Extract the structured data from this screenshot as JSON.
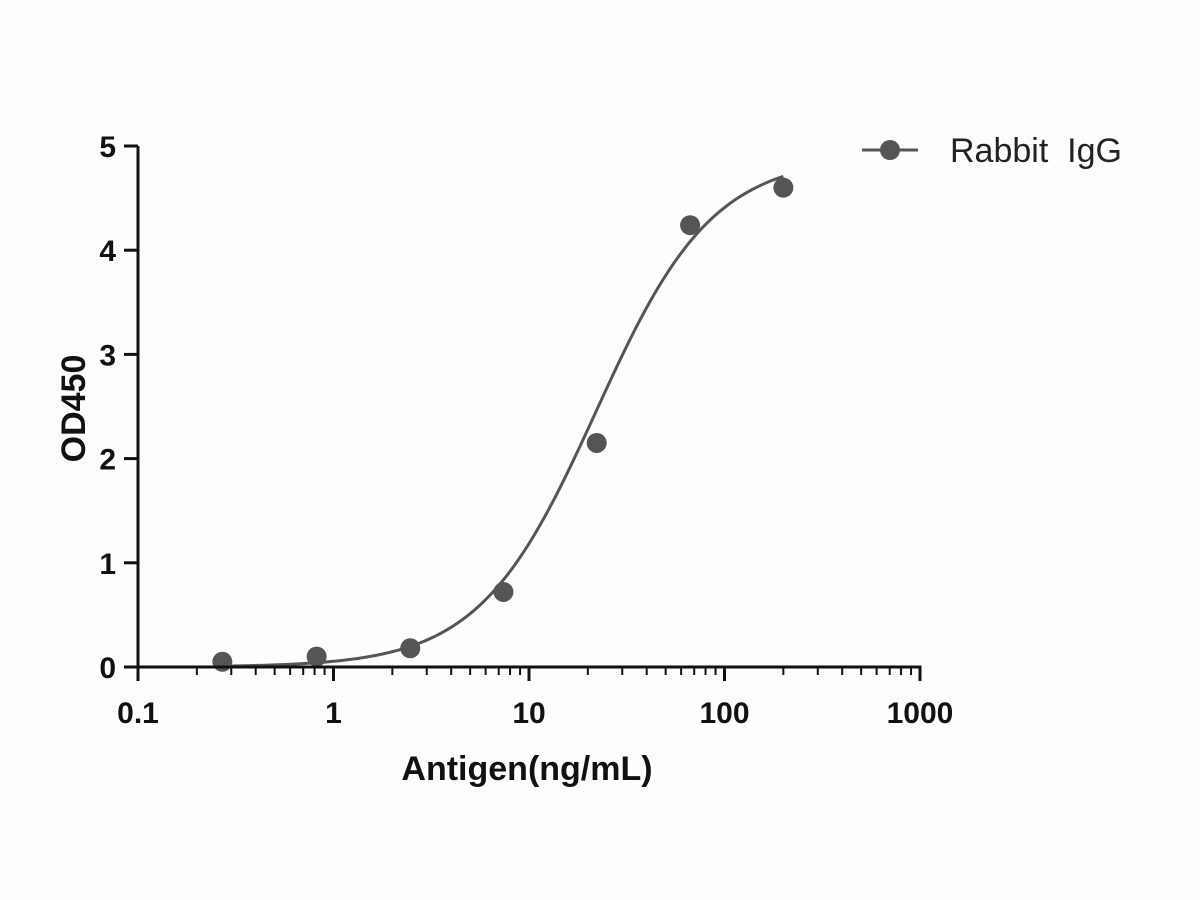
{
  "chart_data": {
    "type": "scatter",
    "title": "",
    "xlabel": "Antigen(ng/mL)",
    "ylabel": "OD450",
    "xscale": "log",
    "xlim": [
      0.1,
      1000
    ],
    "ylim": [
      0,
      5
    ],
    "x_ticks": [
      "0.1",
      "1",
      "10",
      "100",
      "1000"
    ],
    "y_ticks": [
      "0",
      "1",
      "2",
      "3",
      "4",
      "5"
    ],
    "grid": false,
    "legend": "top-right",
    "fit": "sigmoidal",
    "series": [
      {
        "name": "Rabbit  IgG",
        "color": "#555555",
        "x": [
          0.27,
          0.82,
          2.47,
          7.4,
          22.2,
          66.7,
          200
        ],
        "y": [
          0.05,
          0.1,
          0.18,
          0.72,
          2.15,
          4.24,
          4.6
        ]
      }
    ]
  }
}
